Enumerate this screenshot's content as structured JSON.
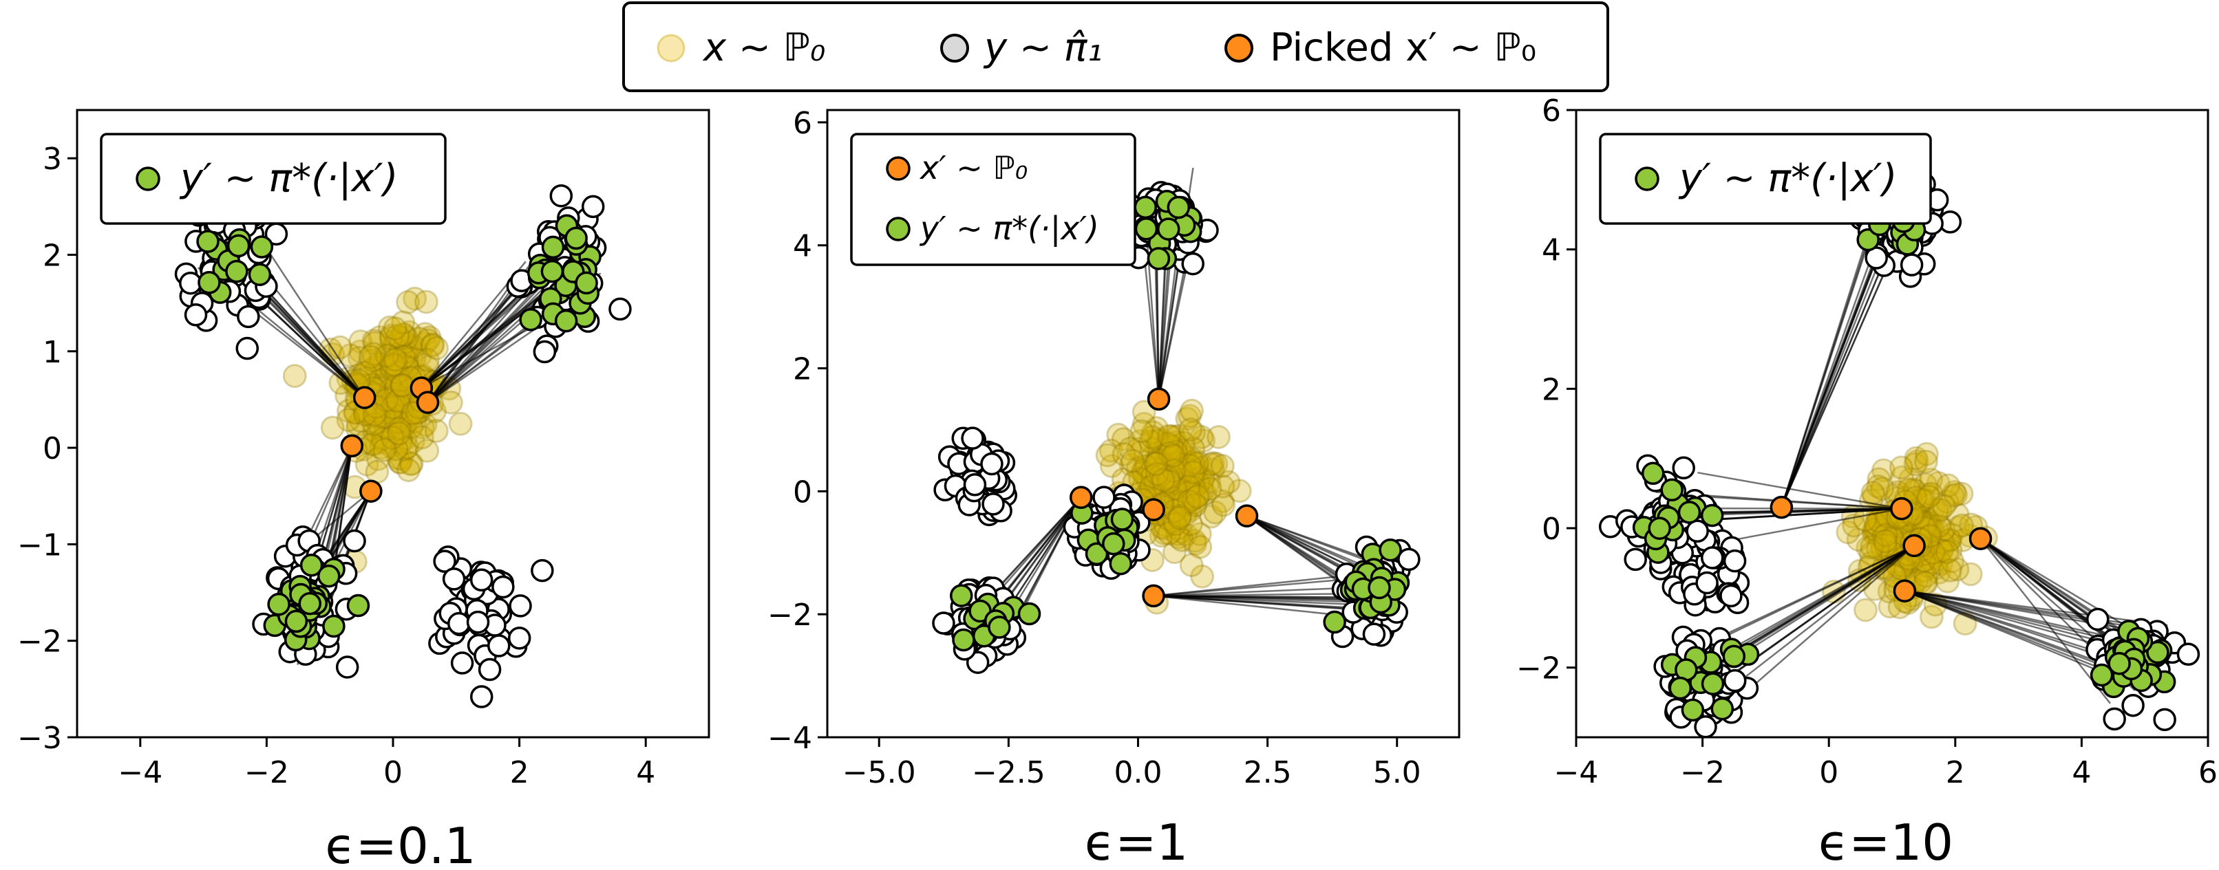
{
  "figure_legend": {
    "entries": [
      {
        "label": "x ∼ ℙ₀",
        "color": "#f2d66b",
        "alpha": 0.5
      },
      {
        "label": "y ∼ π̂₁",
        "color": "#d9d9d9"
      },
      {
        "label": "Picked x′ ∼ ℙ₀",
        "color": "#ff8c1a"
      }
    ]
  },
  "colors": {
    "source": "#d4b000",
    "target": "#ffffff",
    "picked": "#ff8c1a",
    "mapped": "#8fc93a",
    "line": "#000000"
  },
  "chart_data": [
    {
      "type": "scatter",
      "xlabel": "ϵ=0.1",
      "xlim": [
        -5,
        5
      ],
      "ylim": [
        -3,
        3.5
      ],
      "xticks": [
        -4,
        -2,
        0,
        2,
        4
      ],
      "xtick_labels": [
        "−4",
        "−2",
        "0",
        "2",
        "4"
      ],
      "yticks": [
        -3,
        -2,
        -1,
        0,
        1,
        2,
        3
      ],
      "ytick_labels": [
        "−3",
        "−2",
        "−1",
        "0",
        "1",
        "2",
        "3"
      ],
      "legend": {
        "placement": "top-left",
        "entries": [
          {
            "label": "y′ ∼ π*(·|x′)",
            "color": "#8fc93a"
          }
        ]
      },
      "source_cloud": {
        "center": [
          0,
          0.55
        ],
        "spread": [
          0.7,
          0.75
        ],
        "n": 260
      },
      "target_clusters": [
        [
          -2.6,
          1.95
        ],
        [
          2.7,
          1.8
        ],
        [
          -1.3,
          -1.6
        ],
        [
          1.4,
          -1.7
        ]
      ],
      "picked": [
        [
          -0.45,
          0.52
        ],
        [
          0.45,
          0.62
        ],
        [
          0.55,
          0.47
        ],
        [
          -0.65,
          0.02
        ],
        [
          -0.35,
          -0.45
        ]
      ],
      "mapped": [
        [
          -2.6,
          1.95
        ],
        [
          2.7,
          1.8
        ],
        [
          2.7,
          1.8
        ],
        [
          -1.3,
          -1.6
        ],
        [
          -1.3,
          -1.6
        ]
      ]
    },
    {
      "type": "scatter",
      "xlabel": "ϵ=1",
      "xlim": [
        -6,
        6.2
      ],
      "ylim": [
        -4,
        6.2
      ],
      "xticks": [
        -5,
        -2.5,
        0,
        2.5,
        5
      ],
      "xtick_labels": [
        "−5.0",
        "−2.5",
        "0.0",
        "2.5",
        "5.0"
      ],
      "yticks": [
        -4,
        -2,
        0,
        2,
        4,
        6
      ],
      "ytick_labels": [
        "−4",
        "−2",
        "0",
        "2",
        "4",
        "6"
      ],
      "legend": {
        "placement": "top-left",
        "entries": [
          {
            "label": "x′ ∼ ℙ₀",
            "color": "#ff8c1a"
          },
          {
            "label": "y′ ∼ π*(·|x′)",
            "color": "#8fc93a"
          }
        ]
      },
      "source_cloud": {
        "center": [
          0.6,
          0.1
        ],
        "spread": [
          0.85,
          0.9
        ],
        "n": 260
      },
      "target_clusters": [
        [
          0.6,
          4.3
        ],
        [
          -3.0,
          0.2
        ],
        [
          -2.9,
          -2.1
        ],
        [
          -0.5,
          -0.6
        ],
        [
          4.6,
          -1.6
        ]
      ],
      "picked": [
        [
          0.4,
          1.5
        ],
        [
          -1.1,
          -0.1
        ],
        [
          0.3,
          -0.3
        ],
        [
          2.1,
          -0.4
        ],
        [
          0.3,
          -1.7
        ]
      ],
      "mapped": [
        [
          0.6,
          4.3
        ],
        [
          -2.9,
          -2.1
        ],
        [
          -0.5,
          -0.6
        ],
        [
          4.6,
          -1.6
        ],
        [
          4.6,
          -1.6
        ]
      ]
    },
    {
      "type": "scatter",
      "xlabel": "ϵ=10",
      "xlim": [
        -4,
        6
      ],
      "ylim": [
        -3,
        6
      ],
      "xticks": [
        -4,
        -2,
        0,
        2,
        4,
        6
      ],
      "xtick_labels": [
        "−4",
        "−2",
        "0",
        "2",
        "4",
        "6"
      ],
      "yticks": [
        -2,
        0,
        2,
        4,
        6
      ],
      "ytick_labels": [
        "−2",
        "0",
        "2",
        "4",
        "6"
      ],
      "legend": {
        "placement": "top-left",
        "entries": [
          {
            "label": "y′ ∼ π*(·|x′)",
            "color": "#8fc93a"
          }
        ]
      },
      "source_cloud": {
        "center": [
          1.3,
          -0.1
        ],
        "spread": [
          0.75,
          0.8
        ],
        "n": 260
      },
      "target_clusters": [
        [
          1.1,
          4.4
        ],
        [
          -2.5,
          0.1
        ],
        [
          -2.0,
          -0.6
        ],
        [
          -2.0,
          -2.1
        ],
        [
          4.9,
          -1.9
        ]
      ],
      "picked": [
        [
          -0.75,
          0.3
        ],
        [
          1.15,
          0.28
        ],
        [
          1.35,
          -0.25
        ],
        [
          2.4,
          -0.15
        ],
        [
          1.2,
          -0.9
        ]
      ],
      "mapped": [
        [
          1.1,
          4.4
        ],
        [
          -2.5,
          0.1
        ],
        [
          -2.0,
          -2.1
        ],
        [
          4.9,
          -1.9
        ],
        [
          4.9,
          -1.9
        ]
      ]
    }
  ]
}
